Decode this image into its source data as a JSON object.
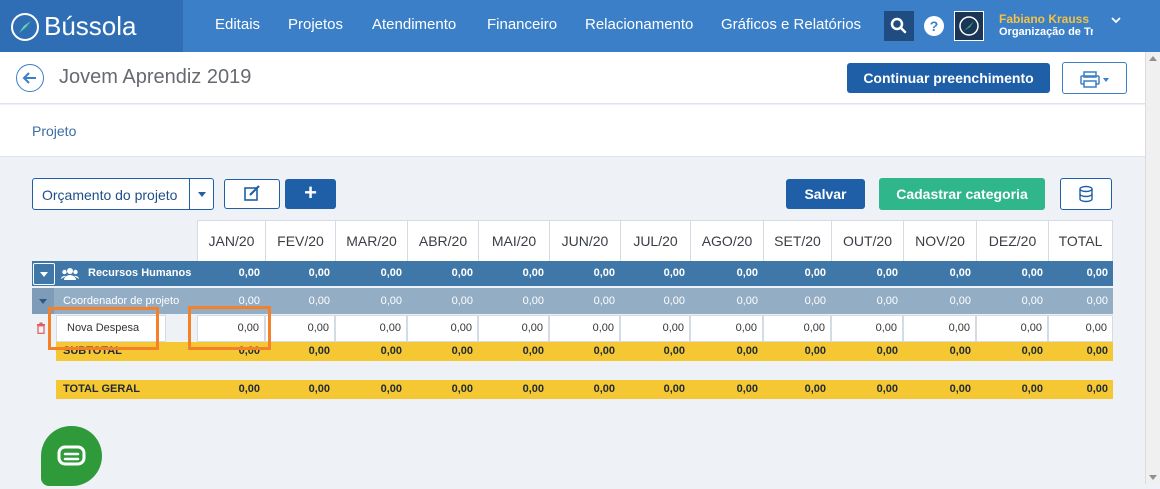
{
  "app": {
    "name": "Bússola"
  },
  "nav": [
    "Editais",
    "Projetos",
    "Atendimento",
    "Financeiro",
    "Relacionamento",
    "Gráficos e Relatórios"
  ],
  "user": {
    "name": "Fabiano Krauss",
    "org": "Organização de Tre"
  },
  "page": {
    "title": "Jovem Aprendiz 2019",
    "continue_label": "Continuar preenchimento",
    "breadcrumb": "Projeto"
  },
  "toolbar": {
    "budget_select": "Orçamento do projeto",
    "save_label": "Salvar",
    "category_label": "Cadastrar categoria",
    "add_label": "+"
  },
  "table": {
    "months": [
      "JAN/20",
      "FEV/20",
      "MAR/20",
      "ABR/20",
      "MAI/20",
      "JUN/20",
      "JUL/20",
      "AGO/20",
      "SET/20",
      "OUT/20",
      "NOV/20",
      "DEZ/20",
      "TOTAL"
    ],
    "group": {
      "label": "Recursos Humanos",
      "values": [
        "0,00",
        "0,00",
        "0,00",
        "0,00",
        "0,00",
        "0,00",
        "0,00",
        "0,00",
        "0,00",
        "0,00",
        "0,00",
        "0,00",
        "0,00"
      ]
    },
    "subgroup": {
      "label": "Coordenador de projeto",
      "values": [
        "0,00",
        "0,00",
        "0,00",
        "0,00",
        "0,00",
        "0,00",
        "0,00",
        "0,00",
        "0,00",
        "0,00",
        "0,00",
        "0,00",
        "0,00"
      ]
    },
    "expense": {
      "label": "Nova Despesa",
      "values": [
        "0,00",
        "0,00",
        "0,00",
        "0,00",
        "0,00",
        "0,00",
        "0,00",
        "0,00",
        "0,00",
        "0,00",
        "0,00",
        "0,00",
        "0,00"
      ]
    },
    "subtotal": {
      "label": "SUBTOTAL",
      "values": [
        "0,00",
        "0,00",
        "0,00",
        "0,00",
        "0,00",
        "0,00",
        "0,00",
        "0,00",
        "0,00",
        "0,00",
        "0,00",
        "0,00",
        "0,00"
      ]
    },
    "total_geral": {
      "label": "TOTAL GERAL",
      "values": [
        "0,00",
        "0,00",
        "0,00",
        "0,00",
        "0,00",
        "0,00",
        "0,00",
        "0,00",
        "0,00",
        "0,00",
        "0,00",
        "0,00",
        "0,00"
      ]
    }
  }
}
